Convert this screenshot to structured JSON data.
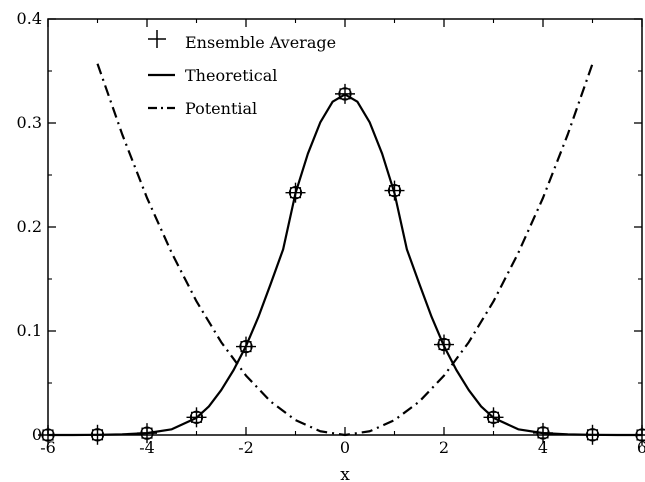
{
  "chart_data": {
    "type": "line",
    "title": "",
    "xlabel": "x",
    "ylabel": "",
    "xlim": [
      -6,
      6
    ],
    "ylim": [
      0,
      0.4
    ],
    "x_ticks": [
      -6,
      -4,
      -2,
      0,
      2,
      4,
      6
    ],
    "x_tick_labels": [
      "-6",
      "-4",
      "-2",
      "0",
      "2",
      "4",
      "6"
    ],
    "y_ticks": [
      0,
      0.1,
      0.2,
      0.3,
      0.4
    ],
    "y_tick_labels": [
      "0",
      "0.1",
      "0.2",
      "0.3",
      "0.4"
    ],
    "legend_position": "top-left",
    "grid": false,
    "series": [
      {
        "name": "Ensemble Average",
        "kind": "markers",
        "marker": "plus-circle",
        "x": [
          -6,
          -5,
          -4,
          -3,
          -2,
          -1,
          0,
          1,
          2,
          3,
          4,
          5,
          6
        ],
        "y": [
          0.0,
          0.0002,
          0.0018,
          0.017,
          0.085,
          0.233,
          0.328,
          0.235,
          0.087,
          0.017,
          0.002,
          0.0002,
          0.0
        ]
      },
      {
        "name": "Theoretical",
        "kind": "line",
        "style": "solid",
        "x": [
          -6,
          -5.5,
          -5,
          -4.5,
          -4,
          -3.5,
          -3,
          -2.75,
          -2.5,
          -2.25,
          -2,
          -1.75,
          -1.5,
          -1.25,
          -1,
          -0.75,
          -0.5,
          -0.25,
          0,
          0.25,
          0.5,
          0.75,
          1,
          1.25,
          1.5,
          1.75,
          2,
          2.25,
          2.5,
          2.75,
          3,
          3.5,
          4,
          4.5,
          5,
          5.5,
          6
        ],
        "y": [
          0.0,
          0.0,
          0.0002,
          0.0006,
          0.0018,
          0.0055,
          0.0165,
          0.0275,
          0.0432,
          0.0625,
          0.0855,
          0.1135,
          0.1455,
          0.1785,
          0.2325,
          0.2705,
          0.3005,
          0.3205,
          0.3275,
          0.3205,
          0.3005,
          0.2705,
          0.2325,
          0.1785,
          0.1455,
          0.1135,
          0.0855,
          0.0625,
          0.0432,
          0.0275,
          0.0165,
          0.0055,
          0.0018,
          0.0006,
          0.0002,
          0.0,
          0.0
        ]
      },
      {
        "name": "Potential",
        "kind": "line",
        "style": "dash-dot",
        "x": [
          -5,
          -4.5,
          -4,
          -3.5,
          -3,
          -2.5,
          -2,
          -1.5,
          -1,
          -0.5,
          0,
          0.5,
          1,
          1.5,
          2,
          2.5,
          3,
          3.5,
          4,
          4.5,
          5
        ],
        "y": [
          0.357,
          0.289,
          0.228,
          0.175,
          0.1285,
          0.0892,
          0.0571,
          0.0321,
          0.0143,
          0.0036,
          0.0,
          0.0036,
          0.0143,
          0.0321,
          0.0571,
          0.0892,
          0.1285,
          0.175,
          0.228,
          0.289,
          0.357
        ]
      }
    ]
  }
}
